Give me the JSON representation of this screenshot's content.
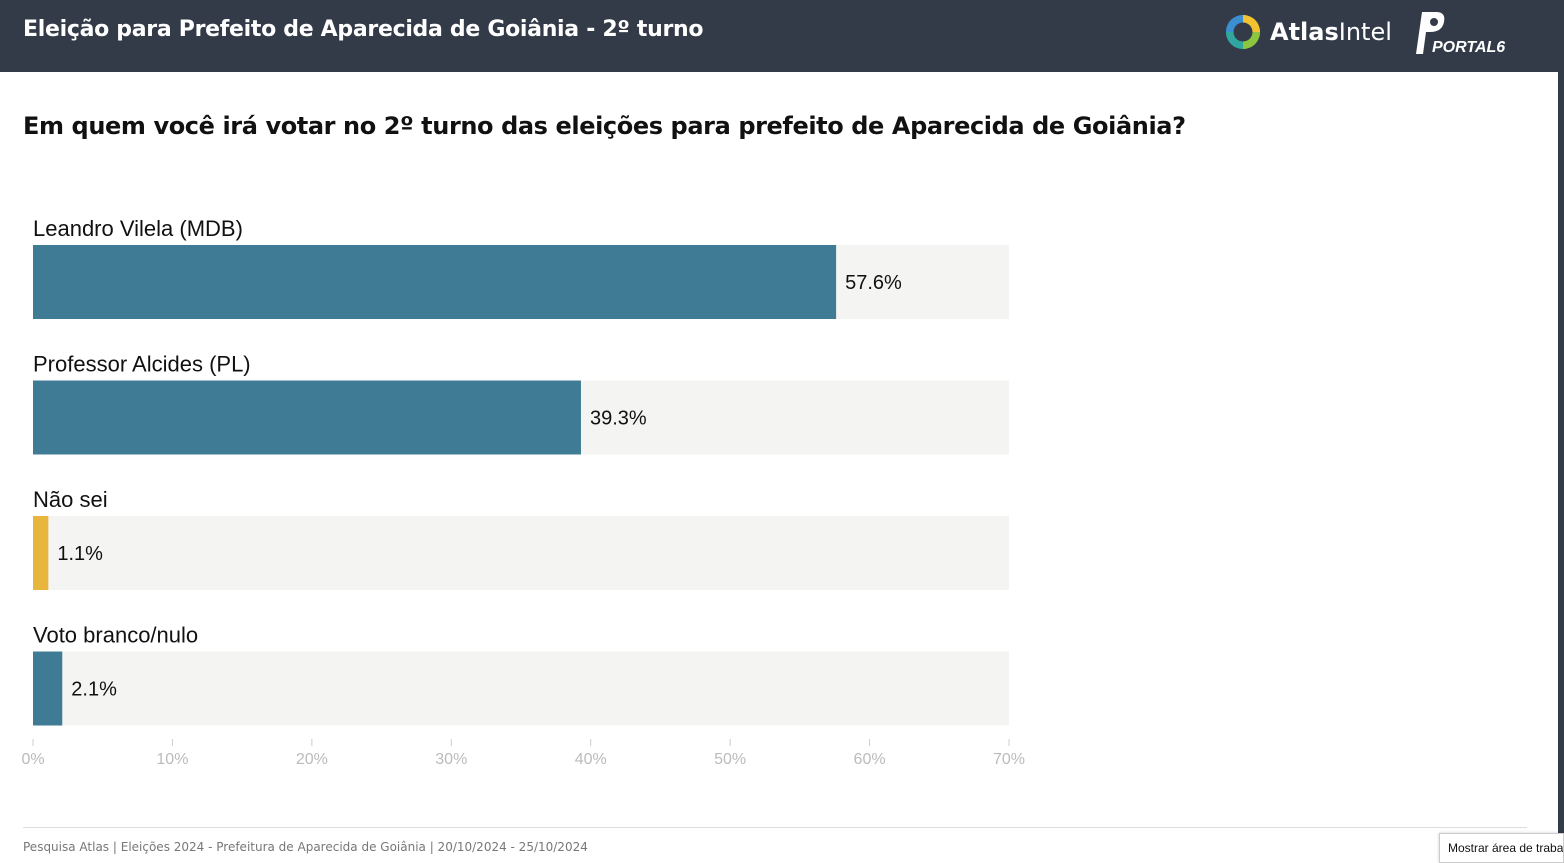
{
  "header": {
    "title": "Eleição para Prefeito de Aparecida de Goiânia - 2º turno",
    "atlas_logo": {
      "icon": "atlas-ring-icon",
      "text_bold": "Atlas",
      "text_regular": "Intel"
    },
    "portal_logo": {
      "icon": "portal6-logo-icon",
      "text": "PORTAL6"
    }
  },
  "question": "Em quem você irá votar no 2º turno das eleições para prefeito de Aparecida de Goiânia?",
  "chart_data": {
    "type": "bar",
    "orientation": "horizontal",
    "categories": [
      "Leandro Vilela (MDB)",
      "Professor Alcides (PL)",
      "Não sei",
      "Voto branco/nulo"
    ],
    "values": [
      57.6,
      39.3,
      1.1,
      2.1
    ],
    "value_labels": [
      "57.6%",
      "39.3%",
      "1.1%",
      "2.1%"
    ],
    "colors": [
      "#3f7b94",
      "#3f7b94",
      "#e8b63d",
      "#3f7b94"
    ],
    "track_color": "#f4f4f3",
    "xlim": [
      0,
      70
    ],
    "xticks": [
      0,
      10,
      20,
      30,
      40,
      50,
      60,
      70
    ],
    "xtick_labels": [
      "0%",
      "10%",
      "20%",
      "30%",
      "40%",
      "50%",
      "60%",
      "70%"
    ],
    "grid": false,
    "legend": "none"
  },
  "footer": {
    "text": "Pesquisa Atlas  |  Eleições 2024 - Prefeitura de Aparecida de Goiânia | 20/10/2024 - 25/10/2024"
  },
  "tooltip": "Mostrar área de trabalho"
}
